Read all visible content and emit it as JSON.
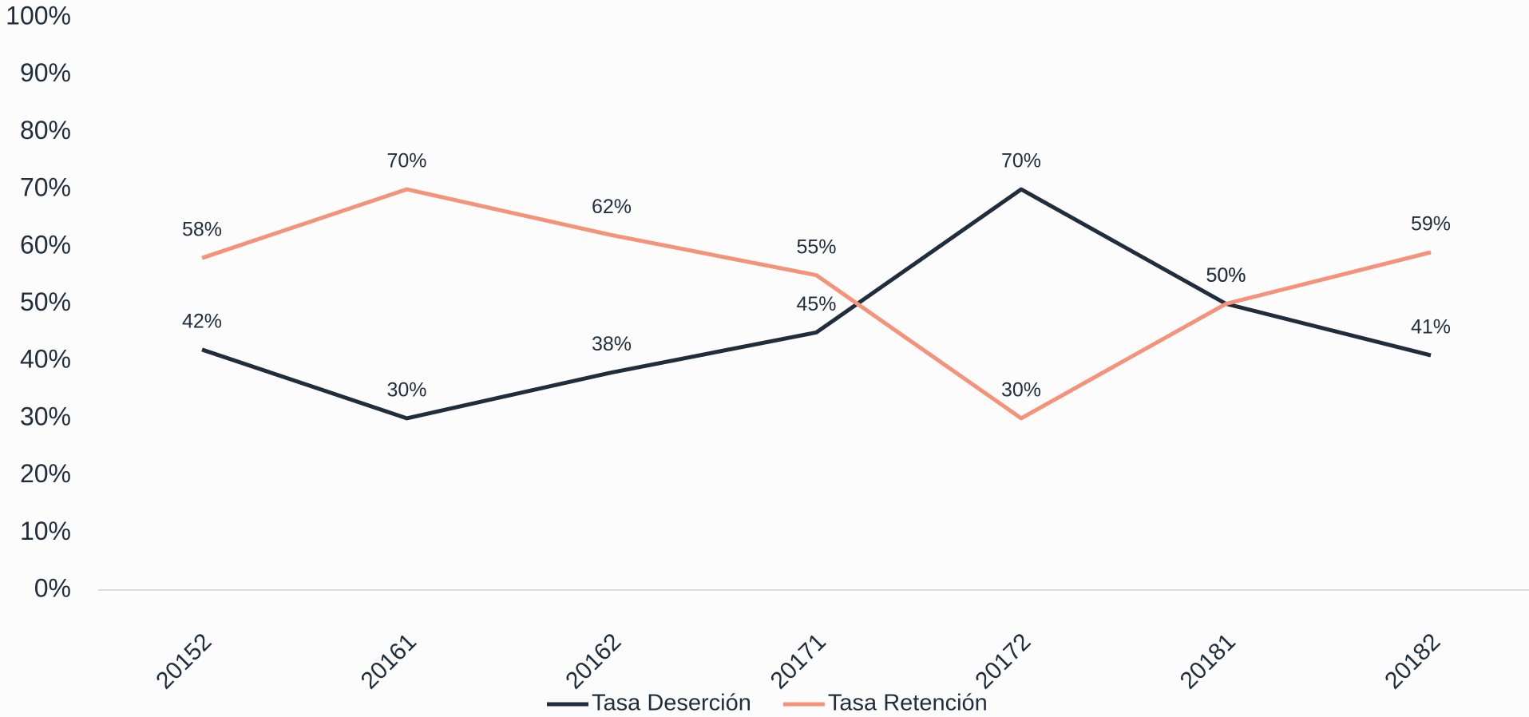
{
  "chart_data": {
    "type": "line",
    "categories": [
      "20152",
      "20161",
      "20162",
      "20171",
      "20172",
      "20181",
      "20182"
    ],
    "series": [
      {
        "name": "Tasa Deserción",
        "color": "#1f2d3d",
        "values": [
          42,
          30,
          38,
          45,
          70,
          50,
          41
        ],
        "value_labels": [
          "42%",
          "30%",
          "38%",
          "45%",
          "70%",
          "50%",
          "41%"
        ]
      },
      {
        "name": "Tasa Retención",
        "color": "#f4937a",
        "values": [
          58,
          70,
          62,
          55,
          30,
          50,
          59
        ],
        "value_labels": [
          "58%",
          "70%",
          "62%",
          "55%",
          "30%",
          "50%",
          "59%"
        ]
      }
    ],
    "ylim": [
      0,
      100
    ],
    "yticks": [
      {
        "value": 0,
        "label": "0%"
      },
      {
        "value": 10,
        "label": "10%"
      },
      {
        "value": 20,
        "label": "20%"
      },
      {
        "value": 30,
        "label": "30%"
      },
      {
        "value": 40,
        "label": "40%"
      },
      {
        "value": 50,
        "label": "50%"
      },
      {
        "value": 60,
        "label": "60%"
      },
      {
        "value": 70,
        "label": "70%"
      },
      {
        "value": 80,
        "label": "80%"
      },
      {
        "value": 90,
        "label": "90%"
      },
      {
        "value": 100,
        "label": "100%"
      }
    ],
    "grid": false,
    "legend": "bottom"
  }
}
